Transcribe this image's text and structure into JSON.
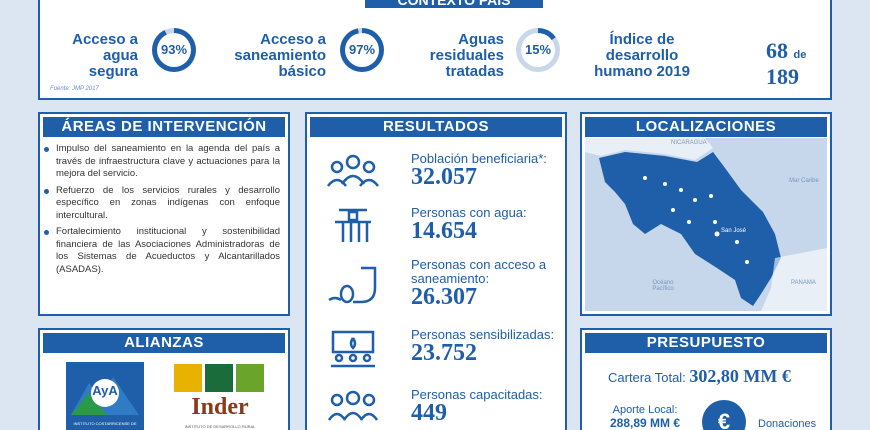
{
  "contexto": {
    "title": "CONTEXTO PAÍS",
    "stats": [
      {
        "label": [
          "Acceso a",
          "agua",
          "segura"
        ],
        "percent": 93,
        "display": "93%"
      },
      {
        "label": [
          "Acceso a",
          "saneamiento",
          "básico"
        ],
        "percent": 97,
        "display": "97%"
      },
      {
        "label": [
          "Aguas",
          "residuales",
          "tratadas"
        ],
        "percent": 15,
        "display": "15%"
      }
    ],
    "hdi": {
      "label": [
        "Índice de",
        "desarrollo",
        "humano 2019"
      ],
      "rank": "68",
      "of": "de",
      "total": "189"
    },
    "source": "Fuente: JMP 2017"
  },
  "areas": {
    "title": "ÁREAS DE INTERVENCIÓN",
    "items": [
      "Impulso del saneamiento en la agenda del país a través de infraestructura clave y actuaciones para la mejora del servicio.",
      "Refuerzo de los servicios rurales y desarrollo específico en zonas indígenas con enfoque intercultural.",
      "Fortalecimiento institucional y sostenibilidad financiera de las Asociaciones Administradoras de los Sistemas de Acueductos y Alcantarillados (ASADAS)."
    ]
  },
  "alianzas": {
    "title": "ALIANZAS",
    "aya_logo_text": "AyA",
    "aya_caption": "INSTITUTO COSTARRICENSE DE",
    "inder_name": "Inder",
    "inder_caption": "INSTITUTO DE DESARROLLO RURAL"
  },
  "resultados": {
    "title": "RESULTADOS",
    "items": [
      {
        "label": "Población beneficiaria*:",
        "value": "32.057",
        "icon": "people-group-icon"
      },
      {
        "label": "Personas con agua:",
        "value": "14.654",
        "icon": "water-tap-icon"
      },
      {
        "label": "Personas con acceso a saneamiento:",
        "value": "26.307",
        "icon": "sewer-pipe-icon"
      },
      {
        "label": "Personas sensibilizadas:",
        "value": "23.752",
        "icon": "training-screen-icon"
      },
      {
        "label": "Personas capacitadas:",
        "value": "449",
        "icon": "certified-people-icon"
      }
    ]
  },
  "localizaciones": {
    "title": "LOCALIZACIONES",
    "labels": {
      "nicaragua": "NICARAGUA",
      "caribe": "Mar Caribe",
      "sanjose": "San José",
      "pacifico": "Océano Pacífico",
      "panama": "PANAMA"
    }
  },
  "presupuesto": {
    "title": "PRESUPUESTO",
    "cartera_label": "Cartera Total:",
    "cartera_value": "302,80 MM €",
    "aporte_label": "Aporte Local:",
    "aporte_value": "288,89 MM €",
    "donaciones_label": "Donaciones",
    "euro_icon": "euro-icon"
  },
  "colors": {
    "primary": "#1f5ea8",
    "background": "#dbe6f2",
    "ring_track": "#c9d7ea"
  }
}
